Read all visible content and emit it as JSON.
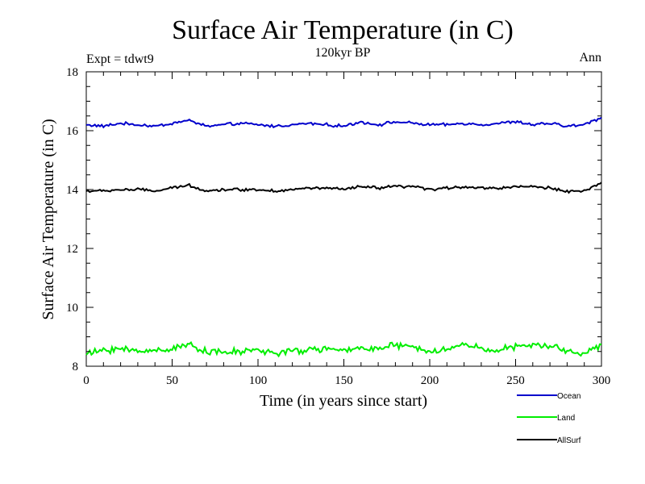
{
  "chart_data": {
    "type": "line",
    "title": "Surface Air Temperature (in C)",
    "subtitle": "120kyr BP",
    "left_note": "Expt = tdwt9",
    "right_note": "Ann",
    "xlabel": "Time (in years since start)",
    "ylabel": "Surface Air Temperature (in C)",
    "xlim": [
      0,
      300
    ],
    "ylim": [
      8,
      18
    ],
    "x_ticks": [
      0,
      50,
      100,
      150,
      200,
      250,
      300
    ],
    "y_ticks": [
      8,
      10,
      12,
      14,
      16,
      18
    ],
    "legend_position": "bottom-right, below plot",
    "series": [
      {
        "name": "Ocean",
        "color": "#0000cc",
        "mean": 16.22,
        "x": [
          0,
          10,
          20,
          30,
          40,
          50,
          60,
          70,
          80,
          90,
          100,
          110,
          120,
          130,
          140,
          150,
          160,
          170,
          180,
          190,
          200,
          210,
          220,
          230,
          240,
          250,
          260,
          270,
          280,
          290,
          300
        ],
        "values": [
          16.2,
          16.15,
          16.25,
          16.2,
          16.15,
          16.25,
          16.35,
          16.15,
          16.2,
          16.25,
          16.2,
          16.15,
          16.2,
          16.25,
          16.2,
          16.15,
          16.3,
          16.2,
          16.3,
          16.25,
          16.2,
          16.2,
          16.25,
          16.2,
          16.25,
          16.3,
          16.2,
          16.25,
          16.15,
          16.2,
          16.45
        ]
      },
      {
        "name": "Land",
        "color": "#00ee00",
        "mean": 8.55,
        "x": [
          0,
          10,
          20,
          30,
          40,
          50,
          60,
          70,
          80,
          90,
          100,
          110,
          120,
          130,
          140,
          150,
          160,
          170,
          180,
          190,
          200,
          210,
          220,
          230,
          240,
          250,
          260,
          270,
          280,
          290,
          300
        ],
        "values": [
          8.4,
          8.55,
          8.6,
          8.5,
          8.55,
          8.6,
          8.75,
          8.5,
          8.45,
          8.5,
          8.55,
          8.45,
          8.5,
          8.55,
          8.6,
          8.5,
          8.65,
          8.6,
          8.7,
          8.65,
          8.5,
          8.55,
          8.75,
          8.6,
          8.55,
          8.65,
          8.7,
          8.7,
          8.5,
          8.45,
          8.7
        ]
      },
      {
        "name": "AllSurf",
        "color": "#000000",
        "mean": 14.02,
        "x": [
          0,
          10,
          20,
          30,
          40,
          50,
          60,
          70,
          80,
          90,
          100,
          110,
          120,
          130,
          140,
          150,
          160,
          170,
          180,
          190,
          200,
          210,
          220,
          230,
          240,
          250,
          260,
          270,
          280,
          290,
          300
        ],
        "values": [
          13.95,
          13.95,
          14.0,
          14.0,
          13.95,
          14.05,
          14.15,
          13.95,
          14.0,
          14.0,
          14.0,
          13.95,
          14.0,
          14.05,
          14.05,
          14.0,
          14.1,
          14.05,
          14.1,
          14.1,
          14.0,
          14.05,
          14.1,
          14.05,
          14.05,
          14.1,
          14.1,
          14.05,
          13.95,
          13.95,
          14.2
        ]
      }
    ]
  }
}
